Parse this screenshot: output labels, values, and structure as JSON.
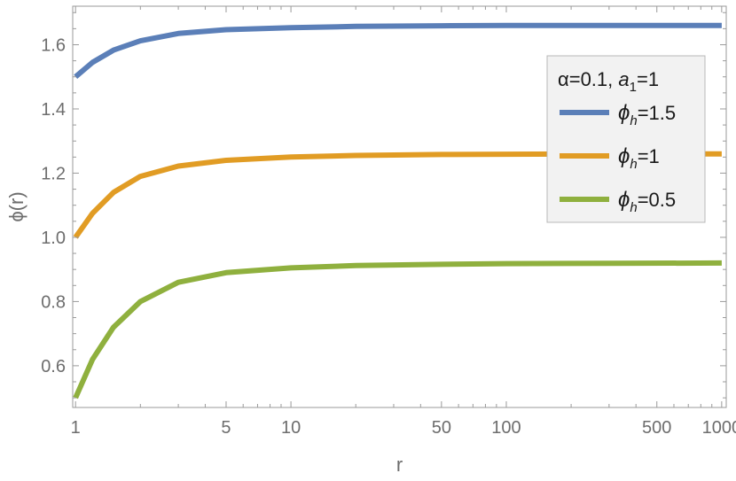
{
  "chart_data": {
    "type": "line",
    "xlabel": "r",
    "ylabel": "ϕ(r)",
    "x_scale": "log",
    "xlim": [
      0.97,
      1050
    ],
    "ylim": [
      0.47,
      1.72
    ],
    "x_ticks": [
      1,
      5,
      10,
      50,
      100,
      500,
      1000
    ],
    "x_tick_labels": [
      "1",
      "5",
      "10",
      "50",
      "100",
      "500",
      "1000"
    ],
    "y_ticks": [
      0.6,
      0.8,
      1.0,
      1.2,
      1.4,
      1.6
    ],
    "y_tick_labels": [
      "0.6",
      "0.8",
      "1.0",
      "1.2",
      "1.4",
      "1.6"
    ],
    "grid": false,
    "legend": {
      "placement": "right",
      "title": {
        "prefix": "α=0.1, ",
        "var": "a",
        "sub": "1",
        "suffix": "=1"
      }
    },
    "series": [
      {
        "name": "ϕh=1.5",
        "label": {
          "sym": "ϕ",
          "sub": "h",
          "value": "=1.5"
        },
        "color": "#5b7fb8",
        "x": [
          1,
          1.2,
          1.5,
          2,
          3,
          5,
          10,
          20,
          50,
          100,
          300,
          1000
        ],
        "values": [
          1.5,
          1.545,
          1.583,
          1.612,
          1.635,
          1.647,
          1.653,
          1.657,
          1.659,
          1.66,
          1.66,
          1.66
        ]
      },
      {
        "name": "ϕh=1",
        "label": {
          "sym": "ϕ",
          "sub": "h",
          "value": "=1"
        },
        "color": "#e19c24",
        "x": [
          1,
          1.2,
          1.5,
          2,
          3,
          5,
          10,
          20,
          50,
          100,
          300,
          1000
        ],
        "values": [
          1.0,
          1.075,
          1.14,
          1.19,
          1.222,
          1.24,
          1.25,
          1.255,
          1.258,
          1.259,
          1.26,
          1.26
        ]
      },
      {
        "name": "ϕh=0.5",
        "label": {
          "sym": "ϕ",
          "sub": "h",
          "value": "=0.5"
        },
        "color": "#8fb03e",
        "x": [
          1,
          1.2,
          1.5,
          2,
          3,
          5,
          10,
          20,
          50,
          100,
          300,
          1000
        ],
        "values": [
          0.5,
          0.62,
          0.72,
          0.8,
          0.86,
          0.89,
          0.905,
          0.912,
          0.916,
          0.918,
          0.919,
          0.92
        ]
      }
    ]
  }
}
